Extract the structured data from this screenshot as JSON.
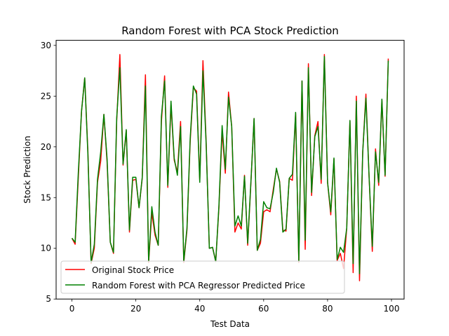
{
  "chart_data": {
    "type": "line",
    "title": "Random Forest with PCA Stock Prediction",
    "xlabel": "Test Data",
    "ylabel": "Stock Prediction",
    "xlim": [
      -4.95,
      103.95
    ],
    "ylim": [
      5,
      30.5
    ],
    "xticks": [
      0,
      20,
      40,
      60,
      80,
      100
    ],
    "yticks": [
      5,
      10,
      15,
      20,
      25,
      30
    ],
    "grid": false,
    "legend_position": "lower-left",
    "series": [
      {
        "name": "Original Stock Price",
        "color": "#ff0000",
        "values": [
          11.0,
          10.4,
          17.0,
          23.5,
          26.8,
          19.5,
          8.5,
          10.0,
          16.5,
          18.6,
          23.2,
          18.5,
          10.6,
          9.5,
          22.5,
          29.1,
          18.2,
          21.6,
          11.6,
          16.7,
          16.8,
          14.0,
          16.9,
          27.1,
          8.6,
          13.5,
          11.3,
          10.3,
          22.5,
          27.0,
          16.0,
          24.2,
          18.7,
          17.5,
          22.5,
          8.6,
          11.8,
          20.5,
          25.8,
          25.5,
          16.7,
          28.5,
          20.5,
          10.0,
          10.1,
          8.7,
          14.0,
          21.5,
          17.4,
          25.4,
          22.0,
          11.6,
          12.5,
          11.9,
          17.2,
          10.3,
          16.4,
          22.8,
          9.8,
          10.5,
          13.6,
          13.8,
          13.6,
          15.8,
          17.8,
          16.6,
          11.8,
          11.7,
          16.9,
          16.7,
          23.3,
          8.6,
          26.5,
          9.9,
          28.2,
          15.2,
          21.1,
          22.5,
          16.4,
          29.1,
          16.5,
          13.3,
          18.8,
          8.8,
          9.5,
          8.0,
          12.0,
          22.6,
          7.6,
          25.0,
          6.8,
          19.5,
          25.2,
          17.0,
          9.7,
          19.8,
          16.2,
          24.6,
          17.1,
          28.7
        ]
      },
      {
        "name": "Random Forest with PCA Regressor Predicted Price",
        "color": "#008000",
        "values": [
          11.0,
          10.6,
          17.5,
          23.5,
          26.8,
          19.2,
          8.6,
          10.4,
          16.8,
          19.5,
          23.2,
          18.8,
          10.6,
          9.6,
          22.8,
          27.8,
          18.3,
          21.7,
          11.8,
          17.0,
          17.0,
          14.0,
          17.0,
          26.0,
          8.7,
          14.1,
          11.6,
          10.3,
          23.0,
          26.5,
          16.2,
          24.5,
          18.9,
          17.2,
          22.0,
          8.7,
          12.0,
          20.8,
          26.0,
          25.2,
          16.5,
          27.5,
          20.3,
          10.0,
          10.1,
          8.7,
          14.2,
          22.1,
          17.8,
          24.9,
          22.0,
          12.2,
          13.2,
          12.2,
          17.1,
          10.5,
          16.5,
          22.8,
          9.8,
          10.9,
          14.6,
          14.0,
          13.9,
          15.5,
          17.9,
          16.5,
          11.6,
          11.9,
          16.9,
          17.3,
          23.4,
          8.7,
          26.5,
          10.8,
          27.8,
          15.5,
          21.0,
          22.0,
          16.8,
          28.9,
          16.5,
          13.6,
          18.9,
          8.9,
          10.1,
          9.6,
          12.0,
          22.6,
          8.5,
          24.5,
          7.5,
          19.5,
          24.8,
          17.0,
          10.2,
          19.5,
          16.5,
          24.7,
          17.2,
          28.5
        ]
      }
    ]
  }
}
